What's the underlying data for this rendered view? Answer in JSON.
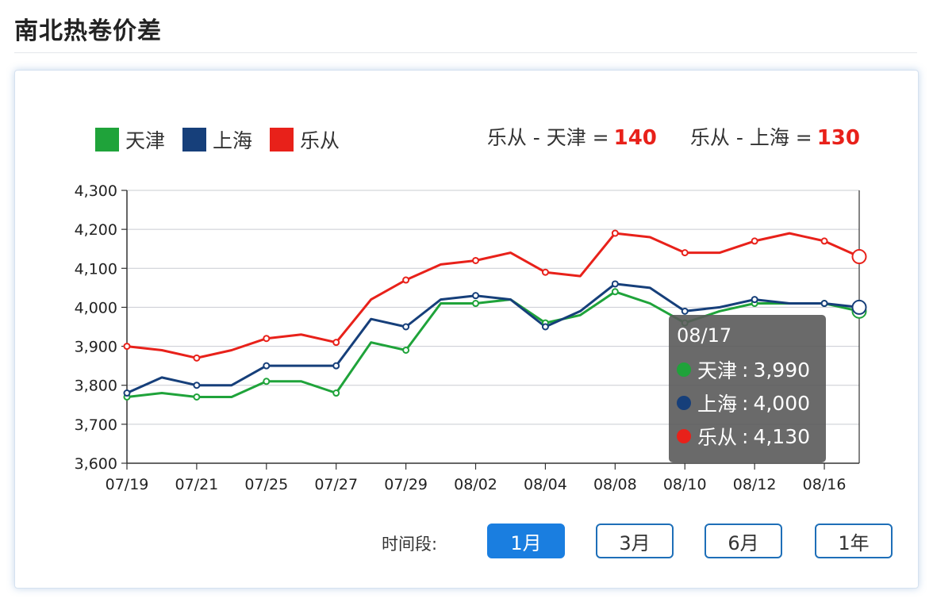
{
  "page": {
    "title": "南北热卷价差"
  },
  "legend": [
    {
      "name": "天津",
      "color": "#1fa33a"
    },
    {
      "name": "上海",
      "color": "#163f7a"
    },
    {
      "name": "乐从",
      "color": "#e8211a"
    }
  ],
  "spreads": [
    {
      "expr": "乐从 - 天津 =",
      "value": "140"
    },
    {
      "expr": "乐从 - 上海 =",
      "value": "130"
    }
  ],
  "tooltip": {
    "title": "08/17",
    "rows": [
      {
        "name": "天津",
        "value": "3,990",
        "color": "#1fa33a"
      },
      {
        "name": "上海",
        "value": "4,000",
        "color": "#163f7a"
      },
      {
        "name": "乐从",
        "value": "4,130",
        "color": "#e8211a"
      }
    ]
  },
  "period": {
    "label": "时间段:",
    "buttons": [
      "1月",
      "3月",
      "6月",
      "1年"
    ],
    "active_index": 0
  },
  "chart_data": {
    "type": "line",
    "ylim": [
      3600,
      4300
    ],
    "yticks": [
      3600,
      3700,
      3800,
      3900,
      4000,
      4100,
      4200,
      4300
    ],
    "ytick_labels": [
      "3,600",
      "3,700",
      "3,800",
      "3,900",
      "4,000",
      "4,100",
      "4,200",
      "4,300"
    ],
    "x": [
      "07/19",
      "07/20",
      "07/21",
      "07/22",
      "07/25",
      "07/26",
      "07/27",
      "07/28",
      "07/29",
      "08/01",
      "08/02",
      "08/03",
      "08/04",
      "08/05",
      "08/08",
      "08/09",
      "08/10",
      "08/11",
      "08/12",
      "08/15",
      "08/16",
      "08/17"
    ],
    "xtick_labels": [
      "07/19",
      "07/21",
      "07/25",
      "07/27",
      "07/29",
      "08/02",
      "08/04",
      "08/08",
      "08/10",
      "08/12",
      "08/16"
    ],
    "grid": true,
    "legend_position": "top-left",
    "series": [
      {
        "name": "天津",
        "color": "#1fa33a",
        "values": [
          3770,
          3780,
          3770,
          3770,
          3810,
          3810,
          3780,
          3910,
          3890,
          4010,
          4010,
          4020,
          3960,
          3980,
          4040,
          4010,
          3960,
          3990,
          4010,
          4010,
          4010,
          3990
        ]
      },
      {
        "name": "上海",
        "color": "#163f7a",
        "values": [
          3780,
          3820,
          3800,
          3800,
          3850,
          3850,
          3850,
          3970,
          3950,
          4020,
          4030,
          4020,
          3950,
          3990,
          4060,
          4050,
          3990,
          4000,
          4020,
          4010,
          4010,
          4000
        ]
      },
      {
        "name": "乐从",
        "color": "#e8211a",
        "values": [
          3900,
          3890,
          3870,
          3890,
          3920,
          3930,
          3910,
          4020,
          4070,
          4110,
          4120,
          4140,
          4090,
          4080,
          4190,
          4180,
          4140,
          4140,
          4170,
          4190,
          4170,
          4130
        ]
      }
    ]
  }
}
